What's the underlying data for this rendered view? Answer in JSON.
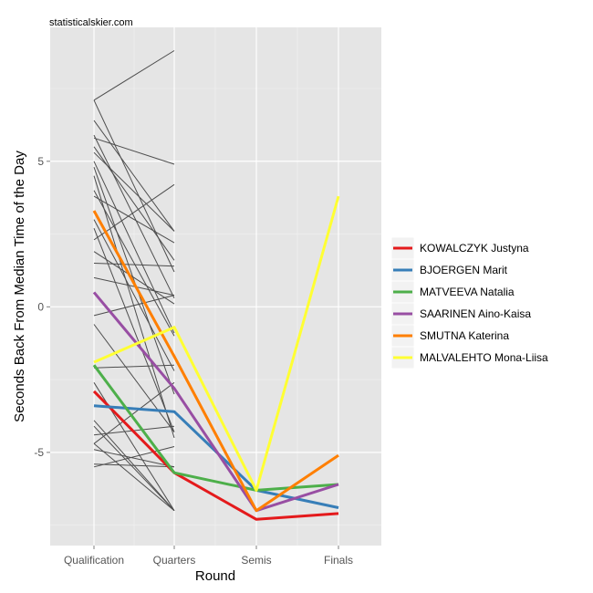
{
  "watermark": "statisticalskier.com",
  "chart_data": {
    "type": "line",
    "title": "",
    "xlabel": "Round",
    "ylabel": "Seconds Back From Median Time of the Day",
    "categories": [
      "Qualification",
      "Quarters",
      "Semis",
      "Finals"
    ],
    "ylim": [
      -8.2,
      9.6
    ],
    "yticks": [
      -5,
      0,
      5
    ],
    "grid": true,
    "legend_position": "right",
    "series": [
      {
        "name": "KOWALCZYK Justyna",
        "color": "#e41a1c",
        "values": [
          -2.9,
          -5.7,
          -7.3,
          -7.1
        ]
      },
      {
        "name": "BJOERGEN Marit",
        "color": "#377eb8",
        "values": [
          -3.4,
          -3.6,
          -6.3,
          -6.9
        ]
      },
      {
        "name": "MATVEEVA Natalia",
        "color": "#4daf4a",
        "values": [
          -2.0,
          -5.7,
          -6.3,
          -6.1
        ]
      },
      {
        "name": "SAARINEN Aino-Kaisa",
        "color": "#984ea3",
        "values": [
          0.5,
          -2.8,
          -7.0,
          -6.1
        ]
      },
      {
        "name": "SMUTNA Katerina",
        "color": "#ff7f00",
        "values": [
          3.3,
          -1.7,
          -7.0,
          -5.1
        ]
      },
      {
        "name": "MALVALEHTO Mona-Liisa",
        "color": "#ffff33",
        "values": [
          -1.9,
          -0.7,
          -6.3,
          3.8
        ]
      }
    ],
    "background_lines": [
      {
        "values": [
          7.1,
          8.8
        ]
      },
      {
        "values": [
          7.1,
          1.2
        ]
      },
      {
        "values": [
          6.4,
          2.6
        ]
      },
      {
        "values": [
          5.9,
          0.3
        ]
      },
      {
        "values": [
          5.8,
          4.9
        ]
      },
      {
        "values": [
          5.5,
          1.6
        ]
      },
      {
        "values": [
          5.3,
          2.6
        ]
      },
      {
        "values": [
          5.0,
          -0.9
        ]
      },
      {
        "values": [
          4.8,
          -3.0
        ]
      },
      {
        "values": [
          4.5,
          -4.5
        ]
      },
      {
        "values": [
          4.0,
          -1.0
        ]
      },
      {
        "values": [
          3.8,
          2.2
        ]
      },
      {
        "values": [
          3.0,
          -2.2
        ]
      },
      {
        "values": [
          2.7,
          -4.3
        ]
      },
      {
        "values": [
          2.3,
          4.2
        ]
      },
      {
        "values": [
          1.9,
          0.1
        ]
      },
      {
        "values": [
          1.5,
          1.4
        ]
      },
      {
        "values": [
          1.0,
          0.4
        ]
      },
      {
        "values": [
          -0.3,
          0.4
        ]
      },
      {
        "values": [
          -2.1,
          -2.0
        ]
      },
      {
        "values": [
          -0.6,
          -4.3
        ]
      },
      {
        "values": [
          -4.4,
          -4.1
        ]
      },
      {
        "values": [
          -4.7,
          -2.6
        ]
      },
      {
        "values": [
          -5.5,
          -4.8
        ]
      },
      {
        "values": [
          -5.4,
          -5.5
        ]
      },
      {
        "values": [
          -4.9,
          -5.5
        ]
      },
      {
        "values": [
          -4.7,
          -7.0
        ]
      },
      {
        "values": [
          -4.1,
          -7.0
        ]
      },
      {
        "values": [
          -3.9,
          -7.0
        ]
      },
      {
        "values": [
          -2.6,
          -7.0
        ]
      }
    ]
  }
}
